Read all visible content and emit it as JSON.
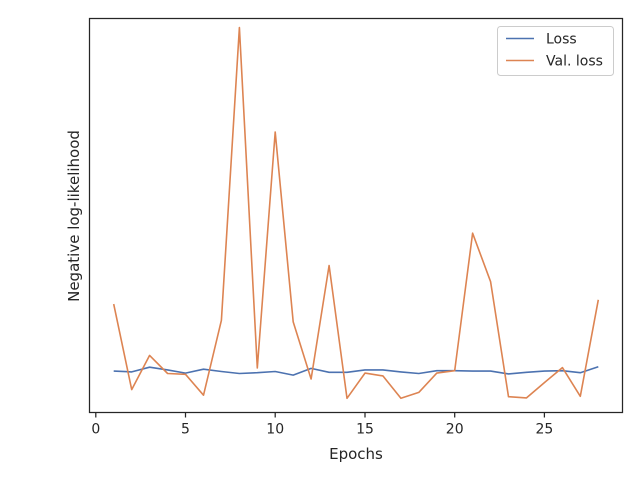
{
  "chart_data": {
    "type": "line",
    "title": "",
    "xlabel": "Epochs",
    "ylabel": "Negative log-likelihood",
    "xlim": [
      -0.35,
      29.35
    ],
    "ylim": [
      0,
      100
    ],
    "xticks": [
      "0",
      "5",
      "10",
      "15",
      "20",
      "25"
    ],
    "xtick_values": [
      0,
      5,
      10,
      15,
      20,
      25
    ],
    "show_y_tick_labels": false,
    "grid": false,
    "legend_position": "top-right",
    "x": [
      1,
      2,
      3,
      4,
      5,
      6,
      7,
      8,
      9,
      10,
      11,
      12,
      13,
      14,
      15,
      16,
      17,
      18,
      19,
      20,
      21,
      22,
      23,
      24,
      25,
      26,
      27,
      28
    ],
    "series": [
      {
        "name": "Loss",
        "color": "#4c72b0",
        "values": [
          10.5,
          10.3,
          11.5,
          10.8,
          10,
          11,
          10.4,
          9.9,
          10.1,
          10.4,
          9.5,
          11.2,
          10.2,
          10.2,
          10.8,
          10.8,
          10.3,
          9.9,
          10.6,
          10.6,
          10.5,
          10.5,
          9.8,
          10.2,
          10.5,
          10.6,
          10.1,
          11.6
        ]
      },
      {
        "name": "Val. loss",
        "color": "#dd8452",
        "values": [
          27.5,
          5.8,
          14.5,
          9.9,
          9.7,
          4.4,
          23.4,
          97.7,
          11.3,
          71.2,
          23,
          8.5,
          37.3,
          3.6,
          10,
          9.3,
          3.6,
          5.1,
          10,
          10.6,
          45.5,
          33.2,
          4,
          3.7,
          7.6,
          11.4,
          4.1,
          28.6
        ]
      }
    ]
  }
}
